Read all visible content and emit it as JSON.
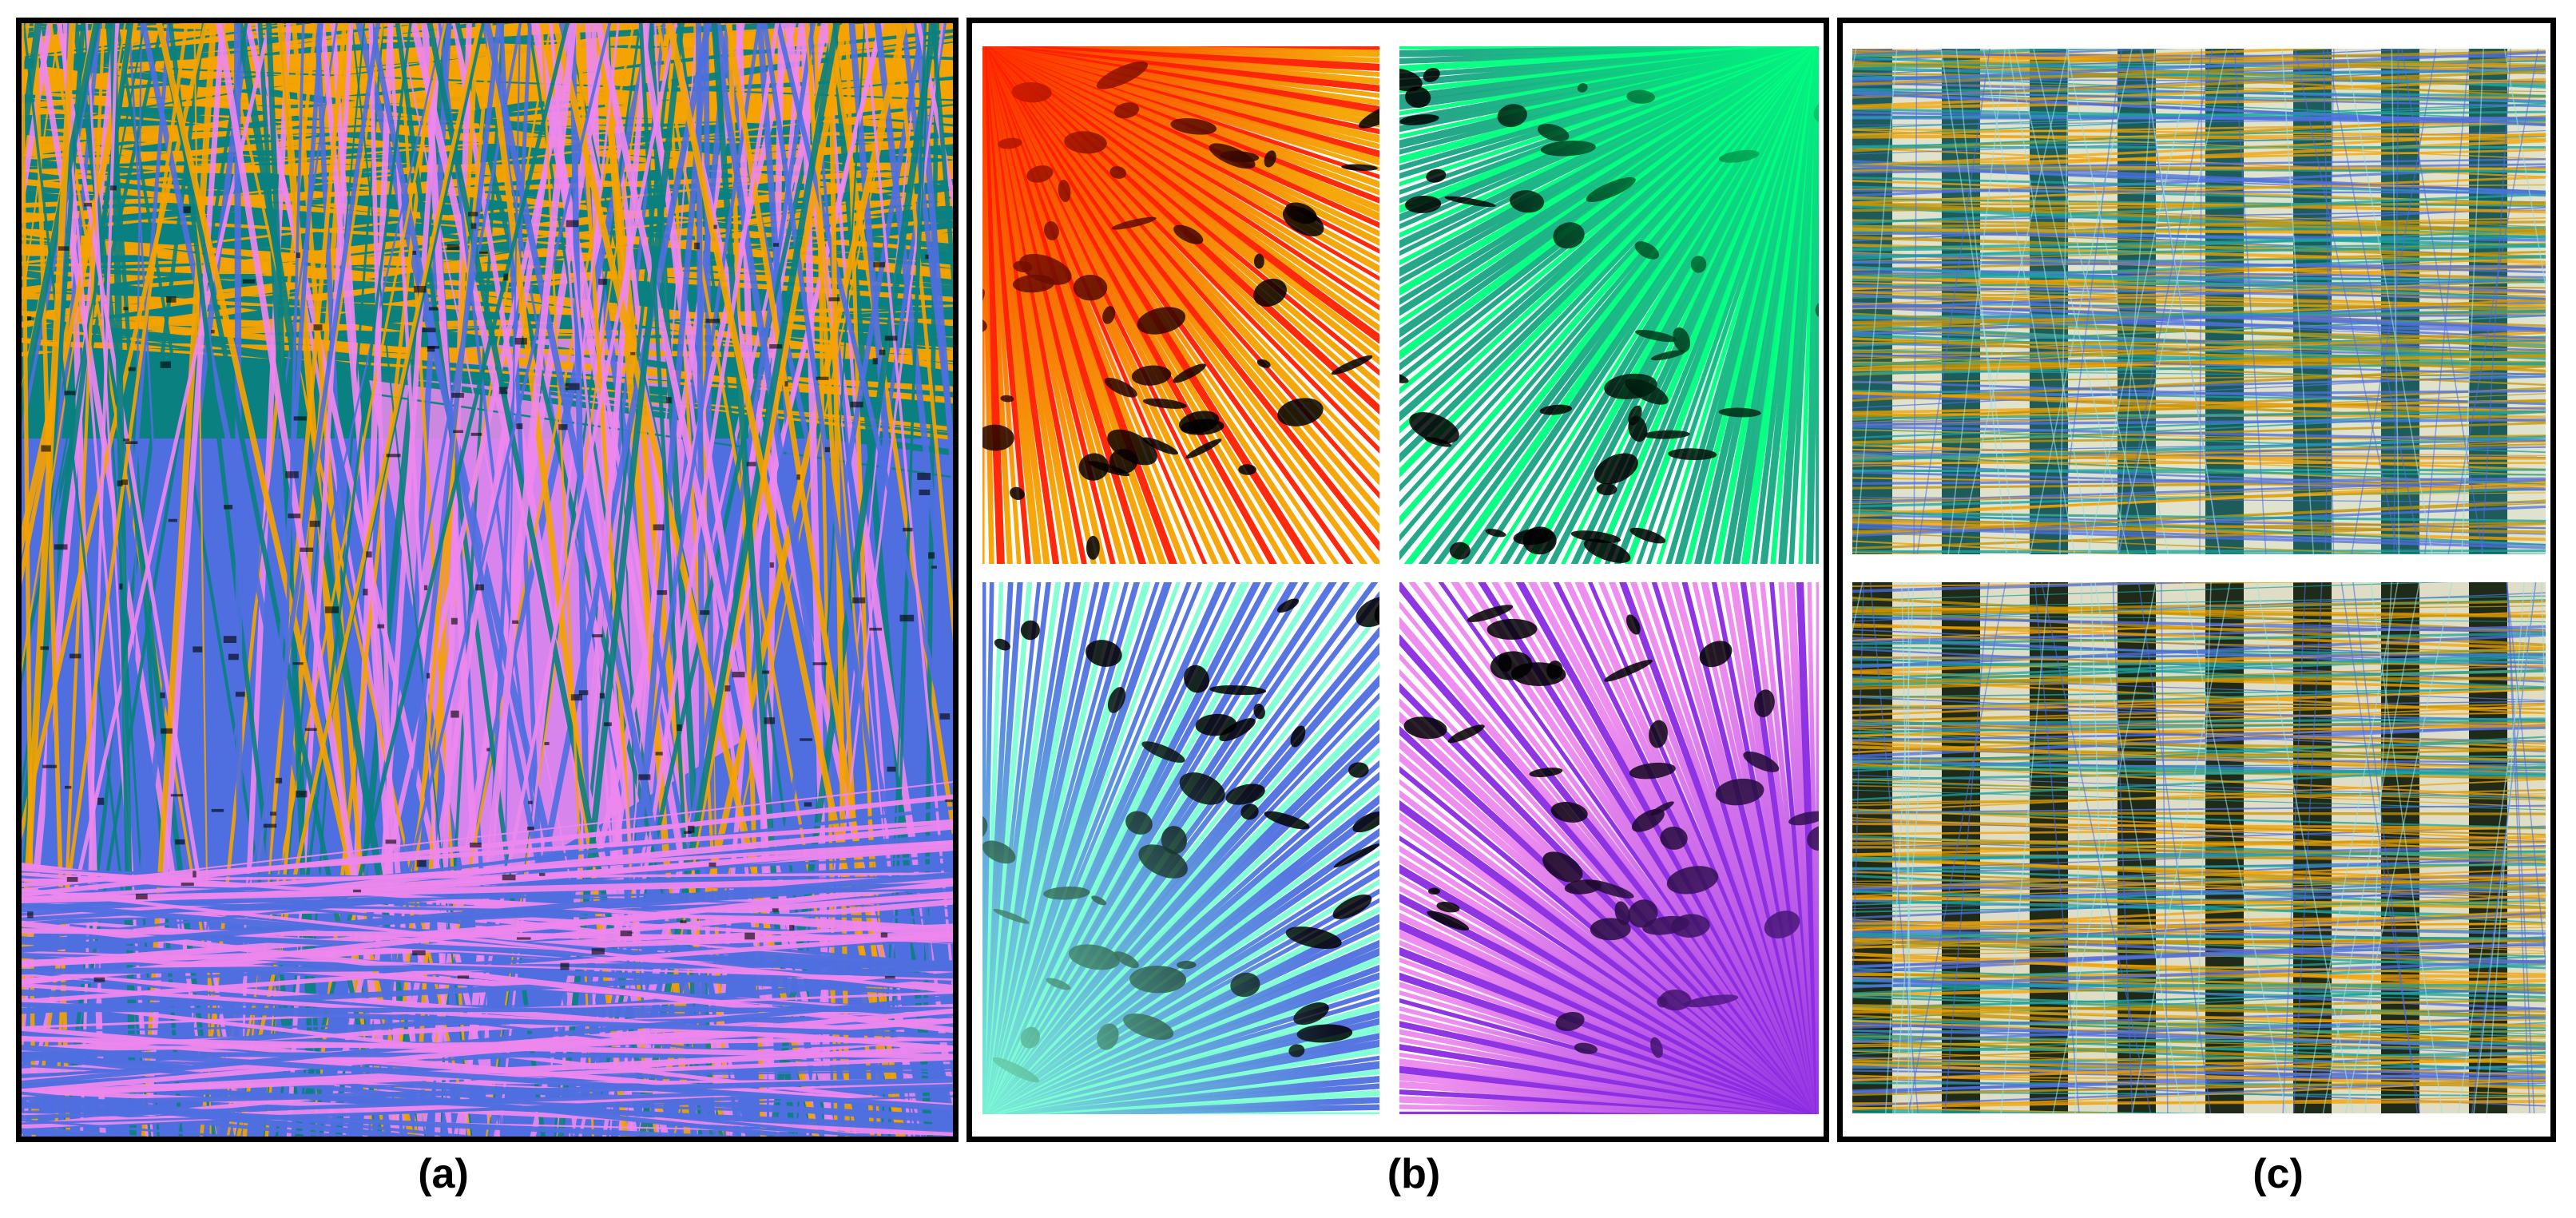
{
  "captions": {
    "a": "(a)",
    "b": "(b)",
    "c": "(c)"
  },
  "palette": {
    "orange": "#F5A300",
    "teal": "#0A8080",
    "royal_blue": "#4F6FE0",
    "violet": "#EE88EE",
    "red": "#FF1E00",
    "spring_green": "#00FF7F",
    "aquamarine": "#7FFFD4",
    "purple": "#8A2BE2",
    "black": "#000000",
    "white": "#FFFFFF"
  },
  "panels": {
    "a": {
      "tiles": 1,
      "description_colors": [
        "orange",
        "teal",
        "royal_blue",
        "violet"
      ]
    },
    "b": {
      "tiles": 4,
      "fan_colors": [
        "red",
        "spring_green",
        "aquamarine",
        "purple"
      ]
    },
    "c": {
      "tiles": 2
    }
  }
}
